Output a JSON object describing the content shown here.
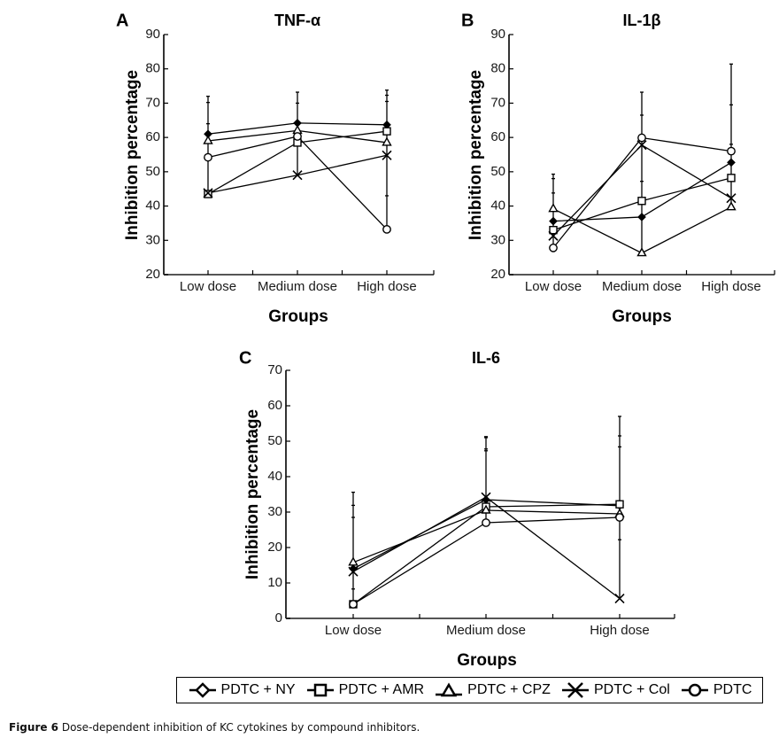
{
  "chart_data": [
    {
      "type": "line",
      "panel": "A",
      "title": "TNF-α",
      "xlabel": "Groups",
      "ylabel": "Inhibition percentage",
      "categories": [
        "Low dose",
        "Medium dose",
        "High dose"
      ],
      "ylim": [
        20,
        90
      ],
      "yticks": [
        20,
        30,
        40,
        50,
        60,
        70,
        80,
        90
      ],
      "grid": false,
      "series": [
        {
          "name": "PDTC + NY",
          "marker": "diamond",
          "values": [
            61.0,
            64.2,
            63.7
          ]
        },
        {
          "name": "PDTC + AMR",
          "marker": "square",
          "values": [
            43.5,
            58.5,
            61.8
          ]
        },
        {
          "name": "PDTC + CPZ",
          "marker": "triangle",
          "values": [
            59.0,
            62.0,
            58.5
          ]
        },
        {
          "name": "PDTC + Col",
          "marker": "x",
          "values": [
            43.8,
            49.0,
            54.8
          ]
        },
        {
          "name": "PDTC",
          "marker": "circle",
          "values": [
            54.2,
            60.3,
            33.2
          ]
        }
      ],
      "error_bar_tops": [
        [
          72.0,
          70.2,
          64.0
        ],
        [
          73.2,
          70.0
        ],
        [
          73.8,
          72.3,
          70.5,
          43.0
        ]
      ]
    },
    {
      "type": "line",
      "panel": "B",
      "title": "IL-1β",
      "xlabel": "Groups",
      "ylabel": "Inhibition percentage",
      "categories": [
        "Low dose",
        "Medium dose",
        "High dose"
      ],
      "ylim": [
        20,
        90
      ],
      "yticks": [
        20,
        30,
        40,
        50,
        60,
        70,
        80,
        90
      ],
      "grid": false,
      "series": [
        {
          "name": "PDTC + NY",
          "marker": "diamond",
          "values": [
            35.6,
            36.8,
            52.7
          ]
        },
        {
          "name": "PDTC + AMR",
          "marker": "square",
          "values": [
            33.0,
            41.5,
            48.2
          ]
        },
        {
          "name": "PDTC + CPZ",
          "marker": "triangle",
          "values": [
            39.2,
            26.3,
            39.7
          ]
        },
        {
          "name": "PDTC + Col",
          "marker": "x",
          "values": [
            31.3,
            57.8,
            42.3
          ]
        },
        {
          "name": "PDTC",
          "marker": "circle",
          "values": [
            27.8,
            59.9,
            56.0
          ]
        }
      ],
      "error_bar_tops": [
        [
          49.3,
          48.0,
          43.8
        ],
        [
          73.2,
          66.5,
          47.2
        ],
        [
          81.4,
          69.5,
          58.0
        ]
      ]
    },
    {
      "type": "line",
      "panel": "C",
      "title": "IL-6",
      "xlabel": "Groups",
      "ylabel": "Inhibition percentage",
      "categories": [
        "Low dose",
        "Medium dose",
        "High dose"
      ],
      "ylim": [
        0,
        70
      ],
      "yticks": [
        0,
        10,
        20,
        30,
        40,
        50,
        60,
        70
      ],
      "grid": false,
      "series": [
        {
          "name": "PDTC + NY",
          "marker": "diamond",
          "values": [
            14.0,
            33.5,
            31.8
          ]
        },
        {
          "name": "PDTC + AMR",
          "marker": "square",
          "values": [
            4.0,
            31.5,
            32.2
          ]
        },
        {
          "name": "PDTC + CPZ",
          "marker": "triangle",
          "values": [
            15.8,
            30.5,
            29.5
          ]
        },
        {
          "name": "PDTC + Col",
          "marker": "x",
          "values": [
            13.2,
            34.2,
            5.6
          ]
        },
        {
          "name": "PDTC",
          "marker": "circle",
          "values": [
            4.0,
            27.0,
            28.5
          ]
        }
      ],
      "error_bar_tops": [
        [
          35.6,
          31.9,
          28.5,
          8.3
        ],
        [
          51.3,
          51.0,
          47.8,
          47.3
        ],
        [
          57.0,
          51.5,
          48.4,
          22.2
        ]
      ]
    }
  ],
  "legend": {
    "placement": "bottom",
    "items": [
      {
        "label": "PDTC + NY",
        "marker": "diamond"
      },
      {
        "label": "PDTC + AMR",
        "marker": "square"
      },
      {
        "label": "PDTC + CPZ",
        "marker": "triangle"
      },
      {
        "label": "PDTC + Col",
        "marker": "x"
      },
      {
        "label": "PDTC",
        "marker": "circle"
      }
    ]
  },
  "caption": {
    "label": "Figure 6",
    "text": " Dose-dependent inhibition of KC cytokines by compound inhibitors."
  }
}
